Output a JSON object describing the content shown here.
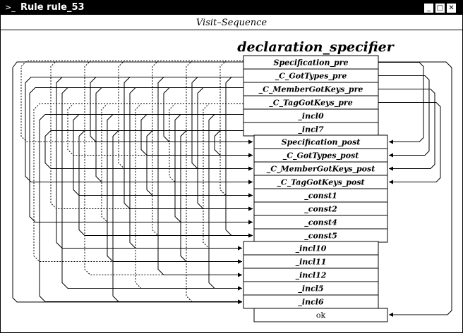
{
  "window": {
    "icon": "layers-icon",
    "title": "Rule rule_53",
    "buttons": [
      {
        "name": "minimize-button",
        "glyph": "_"
      },
      {
        "name": "maximize-button",
        "glyph": "□"
      },
      {
        "name": "close-button",
        "glyph": "✕"
      }
    ]
  },
  "subtitle": "Visit–Sequence",
  "diagram": {
    "heading": "declaration_specifier",
    "left_column": [
      "Specification_pre",
      "_C_GotTypes_pre",
      "_C_MemberGotKeys_pre",
      "_C_TagGotKeys_pre",
      "_incl0",
      "_incl7"
    ],
    "right_column": [
      "Specification_post",
      "_C_GotTypes_post",
      "_C_MemberGotKeys_post",
      "_C_TagGotKeys_post",
      "_const1",
      "_const2",
      "_const4",
      "_const5"
    ],
    "lower_column": [
      "_incl10",
      "_incl11",
      "_incl12",
      "_incl5",
      "_incl6"
    ],
    "final": "ok"
  }
}
